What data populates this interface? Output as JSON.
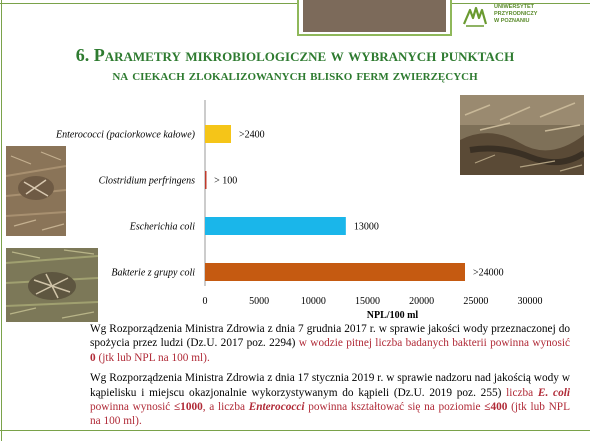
{
  "logo": {
    "line1": "UNIWERSYTET",
    "line2": "PRZYRODNICZY",
    "line3": "W POZNANIU"
  },
  "title": {
    "line1": "6. Parametry mikrobiologiczne w wybranych punktach",
    "line2": "na ciekach zlokalizowanych blisko ferm zwierzęcych"
  },
  "colors": {
    "title_green": "#2e7b30",
    "red_text": "#b02a37",
    "frame_green": "#7aa24a"
  },
  "chart_data": {
    "type": "bar",
    "orientation": "horizontal",
    "categories": [
      "Enterococci (paciorkowce kałowe)",
      "Clostridium perfringens",
      "Escherichia coli",
      "Bakterie z grupy coli"
    ],
    "values": [
      2400,
      100,
      13000,
      24000
    ],
    "data_labels": [
      ">2400",
      "> 100",
      "13000",
      ">24000"
    ],
    "bar_colors": [
      "#f5c518",
      "#c0392b",
      "#1ab6ea",
      "#c55a11"
    ],
    "xlabel": "NPL/100 ml",
    "xlim": [
      0,
      30000
    ],
    "xticks": [
      0,
      5000,
      10000,
      15000,
      20000,
      25000,
      30000
    ],
    "grid": false
  },
  "text": {
    "p1_black": "Wg Rozporządzenia Ministra Zdrowia z dnia 7 grudnia 2017 r. w sprawie jakości wody przeznaczonej do spożycia przez ludzi (Dz.U. 2017 poz. 2294) ",
    "p1_red": "w wodzie pitnej liczba badanych bakterii powinna wynosić ",
    "p1_value": "0",
    "p1_end": " (jtk lub NPL na 100 ml).",
    "p2_black": "Wg Rozporządzenia Ministra Zdrowia z dnia 17 stycznia 2019 r. w sprawie nadzoru nad jakością wody w kąpielisku i miejscu okazjonalnie wykorzystywanym do kąpieli (Dz.U. 2019 poz. 255) ",
    "p2_red1": "liczba ",
    "p2_ecoli": "E. coli",
    "p2_red2": " powinna wynosić ",
    "p2_val1": "≤1000",
    "p2_red3": ", a liczba ",
    "p2_entero": "Enterococci",
    "p2_red4": " powinna kształtować się na poziomie ",
    "p2_val2": "≤400",
    "p2_end": " (jtk lub NPL na 100 ml)."
  }
}
